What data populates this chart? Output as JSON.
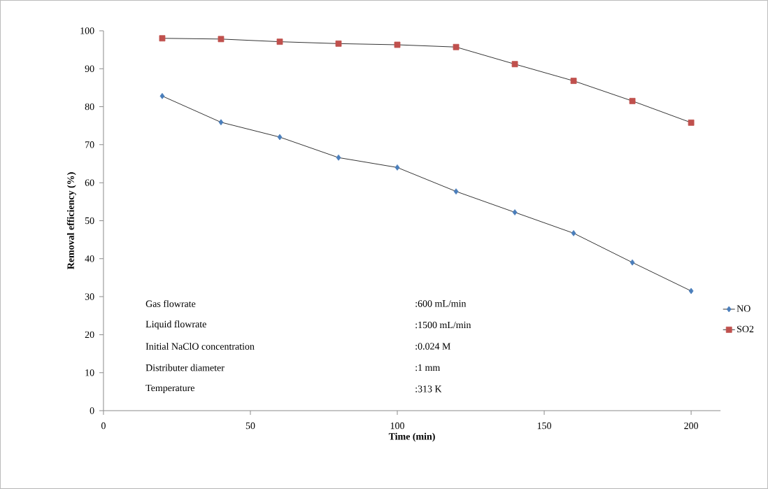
{
  "chart_data": {
    "type": "line",
    "xlabel": "Time (min)",
    "ylabel": "Removal efficiency (%)",
    "x": [
      20,
      40,
      60,
      80,
      100,
      120,
      140,
      160,
      180,
      200
    ],
    "series": [
      {
        "name": "NO",
        "color": "#4a7ebb",
        "marker": "diamond",
        "values": [
          82.8,
          75.9,
          72.0,
          66.6,
          64.0,
          57.7,
          52.2,
          46.7,
          39.0,
          31.5
        ]
      },
      {
        "name": "SO2",
        "color": "#c0504d",
        "marker": "square",
        "values": [
          98.0,
          97.8,
          97.1,
          96.6,
          96.3,
          95.7,
          91.2,
          86.8,
          81.5,
          75.8
        ]
      }
    ],
    "xlim": [
      0,
      210
    ],
    "xticks": [
      0,
      50,
      100,
      150,
      200
    ],
    "ylim": [
      0,
      100
    ],
    "yticks": [
      0,
      10,
      20,
      30,
      40,
      50,
      60,
      70,
      80,
      90,
      100
    ],
    "legend": "right",
    "grid": false,
    "annotations": [
      "Gas flowrate",
      ":600 mL/min",
      "Liquid flowrate",
      ":1500 mL/min",
      "Initial NaClO concentration",
      ":0.024 M",
      "Distributer diameter",
      ":1 mm",
      "Temperature",
      ":313 K"
    ]
  }
}
